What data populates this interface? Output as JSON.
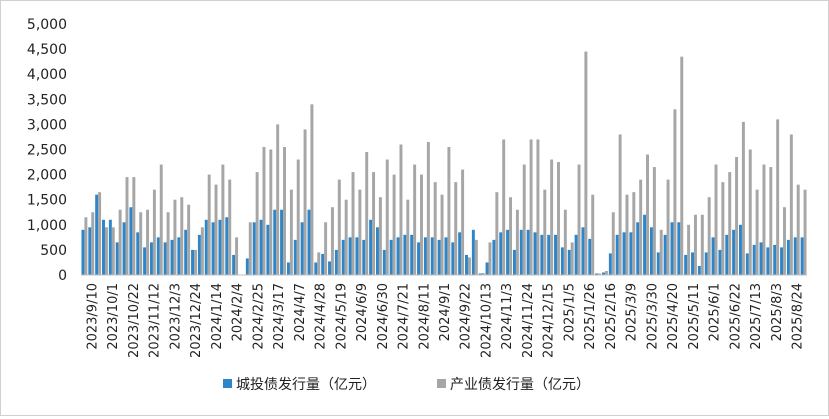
{
  "chart_data": {
    "type": "bar",
    "x_tick_labels": [
      "2023/9/10",
      "2023/10/1",
      "2023/10/22",
      "2023/11/12",
      "2023/12/3",
      "2023/12/24",
      "2024/1/14",
      "2024/2/4",
      "2024/2/25",
      "2024/3/17",
      "2024/4/7",
      "2024/4/28",
      "2024/5/19",
      "2024/6/9",
      "2024/6/30",
      "2024/7/21",
      "2024/8/11",
      "2024/9/1",
      "2024/9/22",
      "2024/10/13",
      "2024/11/3",
      "2024/11/24",
      "2024/12/15",
      "2025/1/5",
      "2025/1/26",
      "2025/2/16",
      "2025/3/9",
      "2025/3/30",
      "2025/4/20",
      "2025/5/11",
      "2025/6/1",
      "2025/6/22",
      "2025/7/13",
      "2025/8/3",
      "2025/8/24"
    ],
    "y_tick_labels": [
      "0",
      "500",
      "1,000",
      "1,500",
      "2,000",
      "2,500",
      "3,000",
      "3,500",
      "4,000",
      "4,500",
      "5,000"
    ],
    "ylim": [
      0,
      5000
    ],
    "grid": false,
    "legend_position": "bottom",
    "series": [
      {
        "name": "城投债发行量（亿元）",
        "color": "#2e86c8",
        "values": [
          900,
          950,
          1600,
          1100,
          1100,
          650,
          1050,
          1350,
          850,
          550,
          650,
          750,
          650,
          700,
          750,
          900,
          500,
          800,
          1100,
          1050,
          1100,
          1150,
          400,
          10,
          330,
          1050,
          1100,
          1000,
          1300,
          1300,
          250,
          700,
          1050,
          1300,
          250,
          420,
          270,
          500,
          700,
          750,
          750,
          700,
          1100,
          950,
          500,
          700,
          750,
          800,
          800,
          650,
          750,
          750,
          700,
          750,
          650,
          850,
          400,
          900,
          30,
          250,
          700,
          850,
          900,
          500,
          900,
          900,
          850,
          800,
          800,
          800,
          550,
          500,
          800,
          950,
          720,
          30,
          50,
          430,
          800,
          850,
          850,
          1050,
          1200,
          950,
          450,
          800,
          1050,
          1050,
          400,
          450,
          180,
          450,
          750,
          500,
          800,
          900,
          1000,
          430,
          600,
          650,
          550,
          600,
          550,
          700,
          750,
          750
        ]
      },
      {
        "name": "产业债发行量（亿元）",
        "color": "#a6a6a6",
        "values": [
          1150,
          1250,
          1650,
          950,
          950,
          1300,
          1950,
          1950,
          1250,
          1300,
          1700,
          2200,
          1250,
          1500,
          1550,
          1400,
          500,
          950,
          2000,
          1800,
          2200,
          1900,
          750,
          10,
          1050,
          2050,
          2550,
          2500,
          3000,
          2550,
          1700,
          2300,
          2900,
          3400,
          450,
          1050,
          1350,
          1900,
          1500,
          2050,
          1700,
          2450,
          2050,
          1550,
          2300,
          2000,
          2600,
          1500,
          2200,
          2000,
          2650,
          1850,
          1600,
          2550,
          1850,
          2100,
          350,
          700,
          40,
          650,
          1650,
          2700,
          1550,
          1300,
          2200,
          2700,
          2700,
          1700,
          2300,
          2250,
          1300,
          650,
          2200,
          4450,
          1600,
          30,
          80,
          1250,
          2800,
          1600,
          1650,
          1900,
          2400,
          2150,
          900,
          1900,
          3300,
          4350,
          1000,
          1200,
          1200,
          1550,
          2200,
          1850,
          2050,
          2350,
          3050,
          2500,
          1700,
          2200,
          2150,
          3100,
          1350,
          2800,
          1800,
          1700
        ]
      }
    ]
  }
}
